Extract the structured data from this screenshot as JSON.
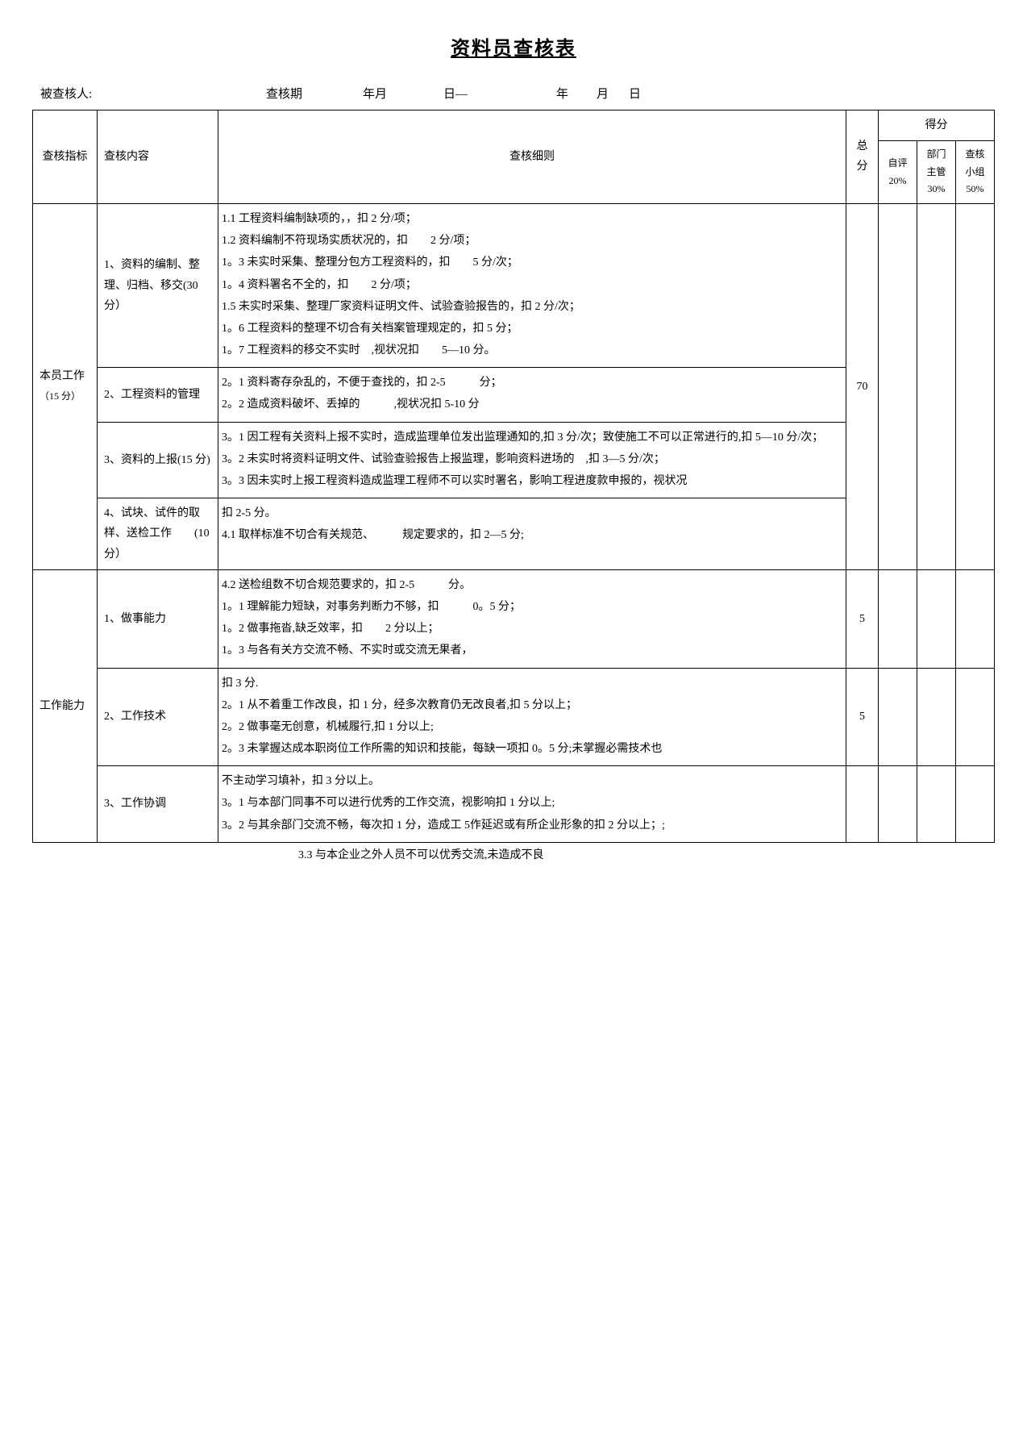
{
  "title": "资料员查核表",
  "header": {
    "examined_label": "被查核人:",
    "period_label": "查核期",
    "ym_label": "年月",
    "day_label": "日—",
    "year_label": "年",
    "month_label": "月",
    "day2_label": "日"
  },
  "table_headers": {
    "category": "查核指标",
    "content": "查核内容",
    "rules": "查核细则",
    "total": "总分",
    "score": "得分",
    "self": "自评",
    "self_pct": "20%",
    "dept": "部门主管",
    "dept_pct": "30%",
    "group": "查核小组",
    "group_pct": "50%"
  },
  "category1": {
    "name": "本员工作",
    "points_hint": "（15 分）",
    "total": "70",
    "row1": {
      "content": "1、资料的编制、整理、归档、移交(30 分）",
      "rules": [
        "1.1 工程资料编制缺项的，，扣 2 分/项；",
        "1.2 资料编制不符现场实质状况的，扣　　2 分/项；",
        "1。3 未实时采集、整理分包方工程资料的，扣　　5 分/次；",
        "1。4 资料署名不全的，扣　　2 分/项；",
        "1.5 未实时采集、整理厂家资料证明文件、试验查验报告的，扣 2 分/次；",
        "1。6 工程资料的整理不切合有关档案管理规定的，扣 5 分；",
        "1。7 工程资料的移交不实时　,视状况扣　　5—10 分。"
      ]
    },
    "row2": {
      "content": "2、工程资料的管理",
      "rules": [
        "2。1 资料寄存杂乱的，不便于查找的，扣 2-5　　　分；",
        "2。2 造成资料破坏、丢掉的　　　,视状况扣 5-10 分"
      ]
    },
    "row3": {
      "content": "3、资料的上报(15 分)",
      "rules": [
        "3。1 因工程有关资料上报不实时，造成监理单位发出监理通知的,扣 3 分/次；致使施工不可以正常进行的,扣 5—10 分/次；",
        "3。2 未实时将资料证明文件、试验查验报告上报监理，影响资料进场的　,扣 3—5 分/次；",
        "3。3 因未实时上报工程资料造成监理工程师不可以实时署名，影响工程进度款申报的，视状况"
      ]
    },
    "row4": {
      "content": "4、试块、试件的取样、送检工作　　(10 分）",
      "rules": [
        "扣 2-5 分。",
        "4.1 取样标准不切合有关规范、　　　规定要求的，扣 2—5 分;"
      ]
    }
  },
  "category2": {
    "name": "工作能力",
    "row1": {
      "content": "1、做事能力",
      "total": "5",
      "rules": [
        "4.2 送检组数不切合规范要求的，扣 2-5　　　分。",
        "1。1 理解能力短缺，对事务判断力不够，扣　　　0。5 分；",
        "1。2 做事拖沓,缺乏效率，扣　　2 分以上；",
        "1。3 与各有关方交流不畅、不实时或交流无果者，"
      ]
    },
    "row2": {
      "content": "2、工作技术",
      "total": "5",
      "rules": [
        "扣 3 分.",
        "2。1 从不着重工作改良，扣 1 分，经多次教育仍无改良者,扣 5 分以上；",
        "2。2 做事毫无创意，机械履行,扣 1 分以上;",
        "2。3 未掌握达成本职岗位工作所需的知识和技能，每缺一项扣 0。5 分;未掌握必需技术也"
      ]
    },
    "row3": {
      "content": "3、工作协调",
      "rules": [
        "不主动学习填补，扣 3 分以上。",
        "3。1 与本部门同事不可以进行优秀的工作交流，视影响扣 1 分以上;",
        "3。2 与其余部门交流不畅，每次扣 1 分，造成工 5作延迟或有所企业形象的扣 2 分以上；;"
      ]
    }
  },
  "spillover": "3.3 与本企业之外人员不可以优秀交流,未造成不良"
}
